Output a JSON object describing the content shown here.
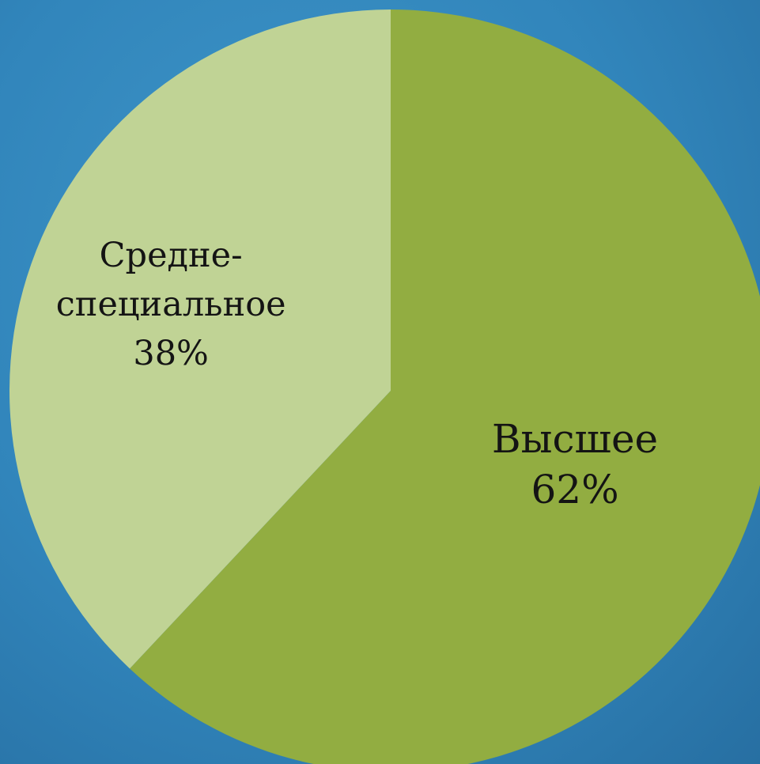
{
  "chart_data": {
    "type": "pie",
    "categories": [
      "Высшее",
      "Средне-специальное"
    ],
    "values": [
      62,
      38
    ],
    "slices": [
      {
        "label_lines": [
          "Высшее",
          "62%"
        ],
        "value": 62,
        "color": "#92ad41"
      },
      {
        "label_lines": [
          "Средне-",
          "специальное",
          "38%"
        ],
        "value": 38,
        "color": "#c0d395"
      }
    ],
    "legend": "none",
    "data_labels": "inside",
    "start": "top, clockwise"
  },
  "colors": {
    "background": "#3185bb",
    "label_text": "#141414"
  }
}
